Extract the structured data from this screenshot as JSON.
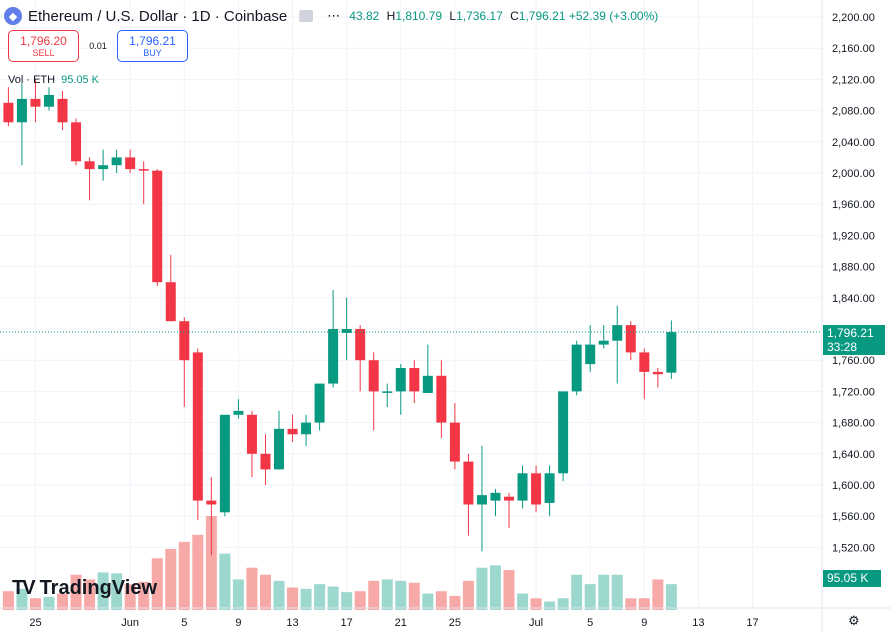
{
  "header": {
    "symbol_icon": "ethereum-icon",
    "title": "Ethereum / U.S. Dollar · 1D · Coinbase",
    "more_glyph": "⋯",
    "open_partial": "43.82",
    "high_label": "H",
    "high": "1,810.79",
    "low_label": "L",
    "low": "1,736.17",
    "close_label": "C",
    "close": "1,796.21",
    "change": "+52.39 (+3.00%)"
  },
  "trade": {
    "sell_price": "1,796.20",
    "sell_label": "SELL",
    "spread": "0.01",
    "buy_price": "1,796.21",
    "buy_label": "BUY"
  },
  "volume": {
    "label": "Vol · ETH",
    "value": "95.05 K",
    "badge": "95.05 K"
  },
  "last_price": {
    "price": "1,796.21",
    "countdown": "33:28"
  },
  "brand": {
    "mark": "TV",
    "name": "TradingView"
  },
  "colors": {
    "up": "#089981",
    "down": "#f23645",
    "up_vol": "#9dd8cf",
    "down_vol": "#f7a9a7",
    "grid": "#f0f3fa",
    "text": "#131722"
  },
  "chart_data": {
    "type": "candlestick",
    "title": "Ethereum / U.S. Dollar · 1D · Coinbase",
    "ylim": [
      1480,
      2220
    ],
    "yticks": [
      2200,
      2160,
      2120,
      2080,
      2040,
      2000,
      1960,
      1920,
      1880,
      1840,
      1800,
      1760,
      1720,
      1680,
      1640,
      1600,
      1560,
      1520
    ],
    "ytick_labels": [
      "2,200.00",
      "2,160.00",
      "2,120.00",
      "2,080.00",
      "2,040.00",
      "2,000.00",
      "1,960.00",
      "1,920.00",
      "1,880.00",
      "1,840.00",
      "1,800.00",
      "1,760.00",
      "1,720.00",
      "1,680.00",
      "1,640.00",
      "1,600.00",
      "1,560.00",
      "1,520.00"
    ],
    "xtick_labels": [
      {
        "day": 25,
        "label": "25"
      },
      {
        "day": 32,
        "label": "Jun"
      },
      {
        "day": 36,
        "label": "5"
      },
      {
        "day": 40,
        "label": "9"
      },
      {
        "day": 44,
        "label": "13"
      },
      {
        "day": 48,
        "label": "17"
      },
      {
        "day": 52,
        "label": "21"
      },
      {
        "day": 56,
        "label": "25"
      },
      {
        "day": 62,
        "label": "Jul"
      },
      {
        "day": 66,
        "label": "5"
      },
      {
        "day": 70,
        "label": "9"
      },
      {
        "day": 74,
        "label": "13"
      },
      {
        "day": 78,
        "label": "17"
      }
    ],
    "last_price": 1796.21,
    "candles": [
      {
        "day": 23,
        "o": 2090,
        "h": 2110,
        "l": 2060,
        "c": 2065
      },
      {
        "day": 24,
        "o": 2065,
        "h": 2115,
        "l": 2010,
        "c": 2095
      },
      {
        "day": 25,
        "o": 2095,
        "h": 2120,
        "l": 2065,
        "c": 2085
      },
      {
        "day": 26,
        "o": 2085,
        "h": 2110,
        "l": 2080,
        "c": 2100
      },
      {
        "day": 27,
        "o": 2095,
        "h": 2105,
        "l": 2055,
        "c": 2065
      },
      {
        "day": 28,
        "o": 2065,
        "h": 2070,
        "l": 2010,
        "c": 2015
      },
      {
        "day": 29,
        "o": 2015,
        "h": 2020,
        "l": 1965,
        "c": 2005
      },
      {
        "day": 30,
        "o": 2005,
        "h": 2030,
        "l": 1990,
        "c": 2010
      },
      {
        "day": 31,
        "o": 2010,
        "h": 2030,
        "l": 2000,
        "c": 2020
      },
      {
        "day": 32,
        "o": 2020,
        "h": 2030,
        "l": 2000,
        "c": 2005
      },
      {
        "day": 33,
        "o": 2005,
        "h": 2015,
        "l": 1960,
        "c": 2003
      },
      {
        "day": 34,
        "o": 2003,
        "h": 2005,
        "l": 1855,
        "c": 1860
      },
      {
        "day": 35,
        "o": 1860,
        "h": 1895,
        "l": 1810,
        "c": 1810
      },
      {
        "day": 36,
        "o": 1810,
        "h": 1815,
        "l": 1700,
        "c": 1760
      },
      {
        "day": 37,
        "o": 1770,
        "h": 1775,
        "l": 1555,
        "c": 1580
      },
      {
        "day": 38,
        "o": 1580,
        "h": 1610,
        "l": 1510,
        "c": 1575
      },
      {
        "day": 39,
        "o": 1565,
        "h": 1690,
        "l": 1560,
        "c": 1690
      },
      {
        "day": 40,
        "o": 1690,
        "h": 1710,
        "l": 1685,
        "c": 1695
      },
      {
        "day": 41,
        "o": 1690,
        "h": 1695,
        "l": 1610,
        "c": 1640
      },
      {
        "day": 42,
        "o": 1640,
        "h": 1665,
        "l": 1600,
        "c": 1620
      },
      {
        "day": 43,
        "o": 1620,
        "h": 1695,
        "l": 1620,
        "c": 1672
      },
      {
        "day": 44,
        "o": 1672,
        "h": 1690,
        "l": 1655,
        "c": 1665
      },
      {
        "day": 45,
        "o": 1665,
        "h": 1690,
        "l": 1650,
        "c": 1680
      },
      {
        "day": 46,
        "o": 1680,
        "h": 1730,
        "l": 1670,
        "c": 1730
      },
      {
        "day": 47,
        "o": 1730,
        "h": 1850,
        "l": 1725,
        "c": 1800
      },
      {
        "day": 48,
        "o": 1795,
        "h": 1840,
        "l": 1760,
        "c": 1800
      },
      {
        "day": 49,
        "o": 1800,
        "h": 1805,
        "l": 1720,
        "c": 1760
      },
      {
        "day": 50,
        "o": 1760,
        "h": 1770,
        "l": 1670,
        "c": 1720
      },
      {
        "day": 51,
        "o": 1720,
        "h": 1730,
        "l": 1700,
        "c": 1720
      },
      {
        "day": 52,
        "o": 1720,
        "h": 1755,
        "l": 1690,
        "c": 1750
      },
      {
        "day": 53,
        "o": 1750,
        "h": 1760,
        "l": 1705,
        "c": 1720
      },
      {
        "day": 54,
        "o": 1718,
        "h": 1780,
        "l": 1718,
        "c": 1740
      },
      {
        "day": 55,
        "o": 1740,
        "h": 1760,
        "l": 1660,
        "c": 1680
      },
      {
        "day": 56,
        "o": 1680,
        "h": 1705,
        "l": 1620,
        "c": 1630
      },
      {
        "day": 57,
        "o": 1630,
        "h": 1640,
        "l": 1535,
        "c": 1575
      },
      {
        "day": 58,
        "o": 1575,
        "h": 1650,
        "l": 1515,
        "c": 1587
      },
      {
        "day": 59,
        "o": 1580,
        "h": 1595,
        "l": 1560,
        "c": 1590
      },
      {
        "day": 60,
        "o": 1585,
        "h": 1590,
        "l": 1545,
        "c": 1580
      },
      {
        "day": 61,
        "o": 1580,
        "h": 1625,
        "l": 1570,
        "c": 1615
      },
      {
        "day": 62,
        "o": 1615,
        "h": 1625,
        "l": 1565,
        "c": 1575
      },
      {
        "day": 63,
        "o": 1577,
        "h": 1625,
        "l": 1560,
        "c": 1615
      },
      {
        "day": 64,
        "o": 1615,
        "h": 1720,
        "l": 1605,
        "c": 1720
      },
      {
        "day": 65,
        "o": 1720,
        "h": 1785,
        "l": 1715,
        "c": 1780
      },
      {
        "day": 66,
        "o": 1755,
        "h": 1805,
        "l": 1745,
        "c": 1780
      },
      {
        "day": 67,
        "o": 1780,
        "h": 1805,
        "l": 1775,
        "c": 1785
      },
      {
        "day": 68,
        "o": 1785,
        "h": 1830,
        "l": 1730,
        "c": 1805
      },
      {
        "day": 69,
        "o": 1805,
        "h": 1810,
        "l": 1760,
        "c": 1770
      },
      {
        "day": 70,
        "o": 1770,
        "h": 1775,
        "l": 1710,
        "c": 1745
      },
      {
        "day": 71,
        "o": 1745,
        "h": 1750,
        "l": 1725,
        "c": 1742
      },
      {
        "day": 72,
        "o": 1744,
        "h": 1811,
        "l": 1736,
        "c": 1796
      }
    ],
    "volume": {
      "ylim": [
        0,
        200
      ],
      "days": [
        23,
        24,
        25,
        26,
        27,
        28,
        29,
        30,
        31,
        32,
        33,
        34,
        35,
        36,
        37,
        38,
        39,
        40,
        41,
        42,
        43,
        44,
        45,
        46,
        47,
        48,
        49,
        50,
        51,
        52,
        53,
        54,
        55,
        56,
        57,
        58,
        59,
        60,
        61,
        62,
        63,
        64,
        65,
        66,
        67,
        68,
        69,
        70,
        71,
        72
      ],
      "values": [
        40,
        45,
        25,
        28,
        35,
        75,
        65,
        80,
        78,
        55,
        60,
        110,
        130,
        145,
        160,
        200,
        120,
        65,
        90,
        75,
        62,
        48,
        45,
        55,
        50,
        38,
        40,
        62,
        65,
        62,
        58,
        35,
        40,
        30,
        62,
        90,
        95,
        85,
        35,
        25,
        18,
        25,
        75,
        55,
        75,
        75,
        25,
        25,
        65,
        55
      ]
    }
  }
}
